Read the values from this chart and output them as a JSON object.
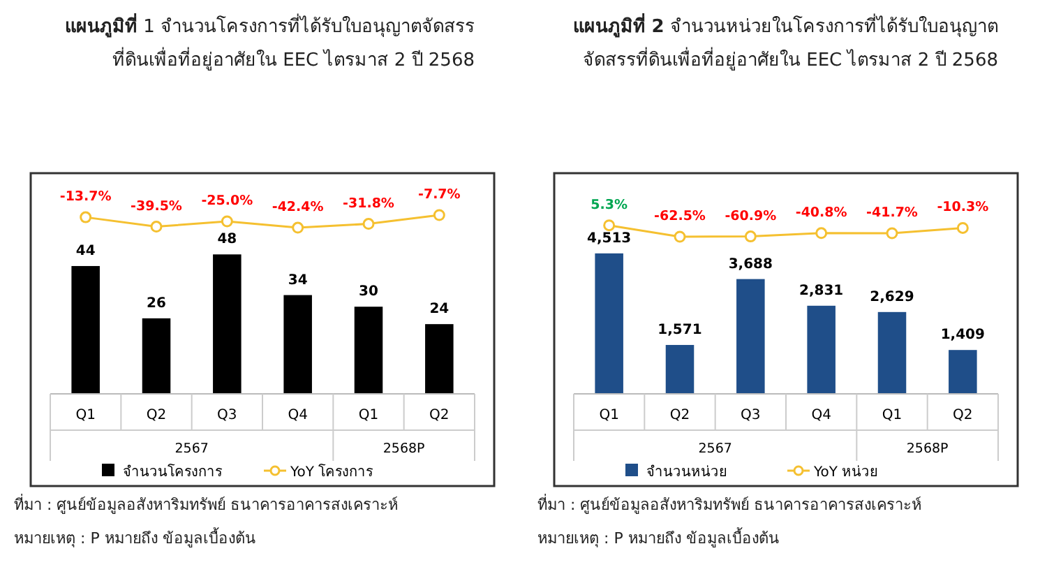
{
  "chart_data": [
    {
      "type": "bar",
      "title": "**แผนภูมิที่** 1 จำนวนโครงการที่ได้รับใบอนุญาตจัดสรรที่ดินเพื่อที่อยู่อาศัยใน EEC ไตรมาส 2 ปี 2568",
      "categories": [
        "Q1",
        "Q2",
        "Q3",
        "Q4",
        "Q1",
        "Q2"
      ],
      "series": [
        {
          "name": "จำนวนโครงการ",
          "color": "#000000",
          "values": [
            44,
            26,
            48,
            34,
            30,
            24
          ],
          "value_labels": [
            "44",
            "26",
            "48",
            "34",
            "30",
            "24"
          ]
        },
        {
          "name": "YoY โครงการ",
          "type": "line",
          "axis": "y2",
          "marker": "circle",
          "color": "#f5c030",
          "values": [
            -13.7,
            -39.5,
            -25.0,
            -42.4,
            -31.8,
            -7.7
          ],
          "value_labels": [
            "-13.7%",
            "-39.5%",
            "-25.0%",
            "-42.4%",
            "-31.8%",
            "-7.7%"
          ]
        }
      ],
      "legend": "bottom",
      "ylim": [
        0,
        75
      ],
      "y2lim": [
        -500,
        100
      ],
      "tick_labels": "x",
      "annotations": [
        "2567",
        "2568P",
        "ที่มา : ศูนย์ข้อมูลอสังหาริมทรัพย์ ธนาคารอาคารสงเคราะห์",
        "หมายเหตุ : P หมายถึง ข้อมูลเบื้องต้น"
      ]
    },
    {
      "type": "bar",
      "title": "**แผนภูมิที่ 2** จำนวนหน่วยในโครงการที่ได้รับใบอนุญาตจัดสรรที่ดินเพื่อที่อยู่อาศัยใน EEC ไตรมาส 2 ปี 2568",
      "categories": [
        "Q1",
        "Q2",
        "Q3",
        "Q4",
        "Q1",
        "Q2"
      ],
      "series": [
        {
          "name": "จำนวนหน่วย",
          "color": "#1f4e89",
          "values": [
            4513,
            1571,
            3688,
            2831,
            2629,
            1409
          ],
          "value_labels": [
            "4,513",
            "1,571",
            "3,688",
            "2,831",
            "2,629",
            "1,409"
          ]
        },
        {
          "name": "YoY หน่วย",
          "type": "line",
          "axis": "y2",
          "marker": "circle",
          "color": "#f5c030",
          "values": [
            5.3,
            -62.5,
            -60.9,
            -40.8,
            -41.7,
            -10.3
          ],
          "value_labels": [
            "5.3%",
            "-62.5%",
            "-60.9%",
            "-40.8%",
            "-41.7%",
            "-10.3%"
          ]
        }
      ],
      "legend": "bottom",
      "ylim": [
        0,
        7000
      ],
      "y2lim": [
        -1000,
        300
      ],
      "tick_labels": "x",
      "annotations": [
        "2567",
        "2568P",
        "ที่มา : ศูนย์ข้อมูลอสังหาริมทรัพย์ ธนาคารอาคารสงเคราะห์",
        "หมายเหตุ : P หมายถึง ข้อมูลเบื้องต้น"
      ]
    }
  ]
}
